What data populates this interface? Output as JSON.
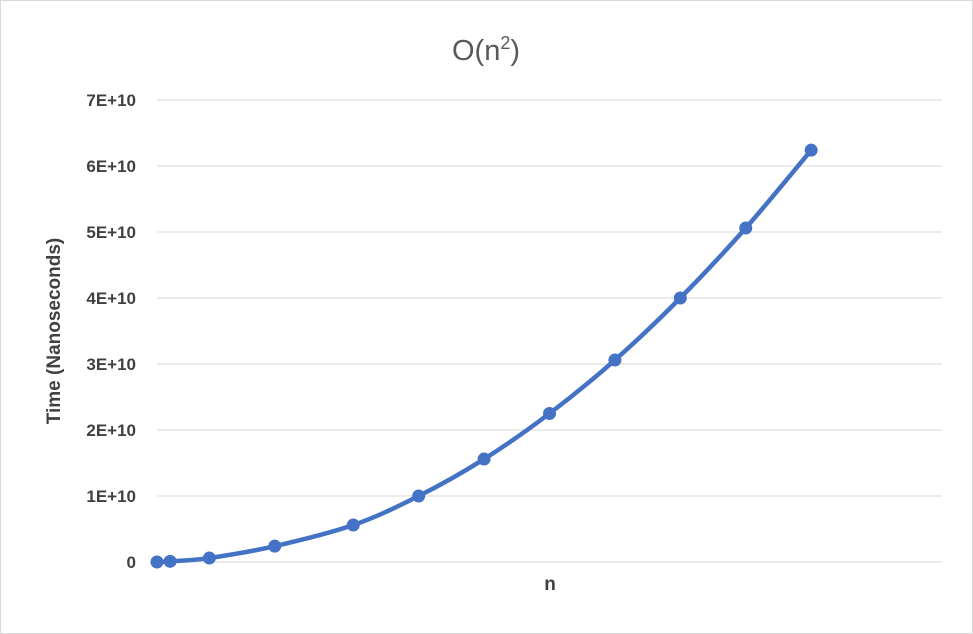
{
  "chart_data": {
    "type": "line",
    "title_base": "O(n",
    "title_sup": "2",
    "title_tail": ")",
    "xlabel": "n",
    "ylabel": "Time (Nanoseconds)",
    "ylim": [
      0,
      70000000000
    ],
    "yticks": [
      {
        "value": 0,
        "label": "0"
      },
      {
        "value": 10000000000,
        "label": "1E+10"
      },
      {
        "value": 20000000000,
        "label": "2E+10"
      },
      {
        "value": 30000000000,
        "label": "3E+10"
      },
      {
        "value": 40000000000,
        "label": "4E+10"
      },
      {
        "value": 50000000000,
        "label": "5E+10"
      },
      {
        "value": 60000000000,
        "label": "6E+10"
      },
      {
        "value": 70000000000,
        "label": "7E+10"
      }
    ],
    "grid": true,
    "legend": "none",
    "series": [
      {
        "color": "#4472c4",
        "x": [
          0,
          10000,
          40000,
          90000,
          150000,
          200000,
          250000,
          300000,
          350000,
          400000,
          450000,
          500000
        ],
        "values": [
          0,
          100000000,
          600000000,
          2400000000,
          5600000000,
          10000000000,
          15600000000,
          22500000000,
          30600000000,
          40000000000,
          50600000000,
          62400000000
        ]
      }
    ],
    "xlim": [
      0,
      600000
    ]
  }
}
